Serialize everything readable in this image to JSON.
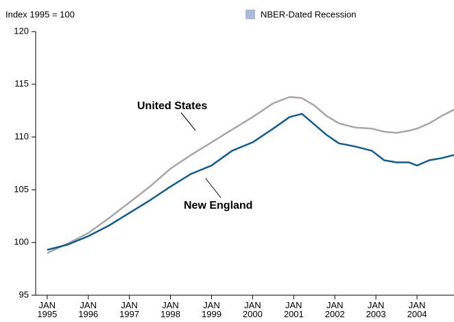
{
  "chart_data": {
    "type": "line",
    "title": "Index 1995 = 100",
    "legend_item": {
      "label": "NBER-Dated Recession",
      "color": "#a9bbdc"
    },
    "x": [
      1995.0,
      1995.5,
      1996.0,
      1996.5,
      1997.0,
      1997.5,
      1998.0,
      1998.5,
      1999.0,
      1999.5,
      2000.0,
      2000.5,
      2000.9,
      2001.2,
      2001.5,
      2001.8,
      2002.1,
      2002.5,
      2002.9,
      2003.2,
      2003.5,
      2003.8,
      2004.0,
      2004.3,
      2004.6,
      2004.9
    ],
    "series": [
      {
        "name": "United States",
        "color": "#a6a6a6",
        "values": [
          99.0,
          99.9,
          100.9,
          102.3,
          103.8,
          105.3,
          107.0,
          108.3,
          109.5,
          110.7,
          111.9,
          113.2,
          113.8,
          113.7,
          113.0,
          112.0,
          111.3,
          110.9,
          110.8,
          110.5,
          110.4,
          110.6,
          110.8,
          111.3,
          112.0,
          112.6
        ]
      },
      {
        "name": "New England",
        "color": "#0d5c94",
        "values": [
          99.3,
          99.8,
          100.6,
          101.6,
          102.8,
          104.0,
          105.3,
          106.5,
          107.3,
          108.7,
          109.5,
          110.8,
          111.9,
          112.2,
          111.2,
          110.2,
          109.4,
          109.1,
          108.7,
          107.8,
          107.6,
          107.6,
          107.3,
          107.8,
          108.0,
          108.3
        ]
      }
    ],
    "xlim": [
      1994.72,
      2004.9
    ],
    "xticks": [
      {
        "value": 1995,
        "label": "JAN\n1995"
      },
      {
        "value": 1996,
        "label": "JAN\n1996"
      },
      {
        "value": 1997,
        "label": "JAN\n1997"
      },
      {
        "value": 1998,
        "label": "JAN\n1998"
      },
      {
        "value": 1999,
        "label": "JAN\n1999"
      },
      {
        "value": 2000,
        "label": "JAN\n2000"
      },
      {
        "value": 2001,
        "label": "JAN\n2001"
      },
      {
        "value": 2002,
        "label": "JAN\n2002"
      },
      {
        "value": 2003,
        "label": "JAN\n2003"
      },
      {
        "value": 2004,
        "label": "JAN\n2004"
      }
    ],
    "ylim": [
      95,
      120
    ],
    "yticks": [
      95,
      100,
      105,
      110,
      115,
      120
    ],
    "grid": false
  }
}
